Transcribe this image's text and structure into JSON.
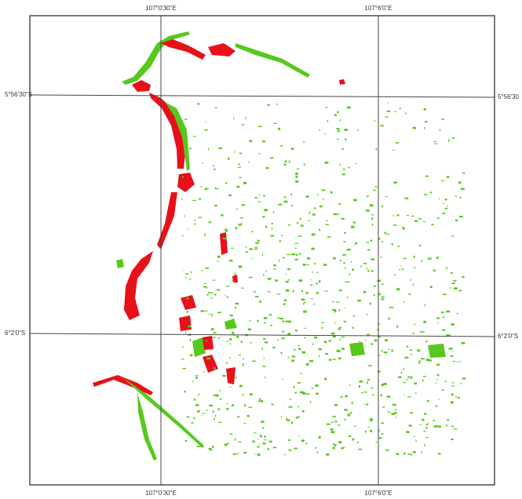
{
  "map": {
    "graticule": {
      "top": [
        "107°0'30\"E",
        "107°6'0\"E"
      ],
      "bottom": [
        "107°0'30\"E",
        "107°6'0\"E"
      ],
      "left": [
        "5°56'30\"S",
        "6°2'0\"S"
      ],
      "right": [
        "5°56'30",
        "6°2'0\"S"
      ]
    }
  }
}
